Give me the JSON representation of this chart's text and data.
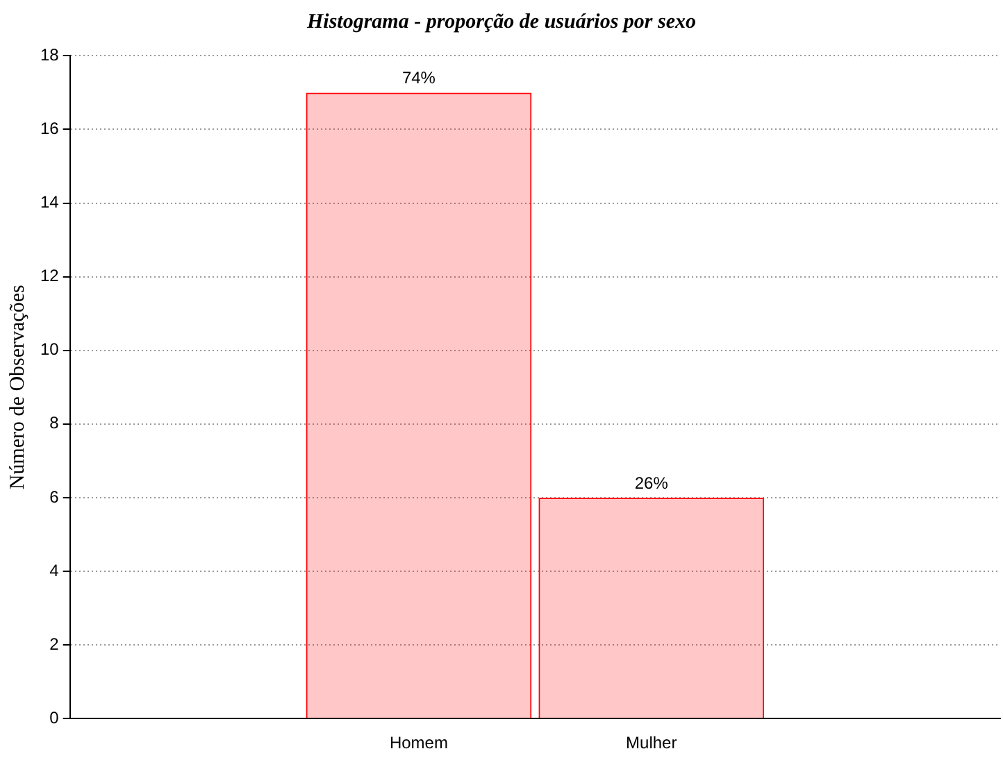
{
  "chart_data": {
    "type": "bar",
    "title": "Histograma - proporção de usuários por sexo",
    "ylabel": "Número de Observações",
    "categories": [
      null,
      "Homem",
      "Mulher",
      null
    ],
    "values": [
      null,
      17,
      6,
      null
    ],
    "annotations": [
      {
        "text": "74%",
        "x": "Homem",
        "y": 17
      },
      {
        "text": "26%",
        "x": "Mulher",
        "y": 6
      }
    ],
    "color": "#ff0000",
    "ylim": [
      0,
      18
    ],
    "yticks": [
      0,
      2,
      4,
      6,
      8,
      10,
      12,
      14,
      16,
      18
    ],
    "grid": "y"
  }
}
